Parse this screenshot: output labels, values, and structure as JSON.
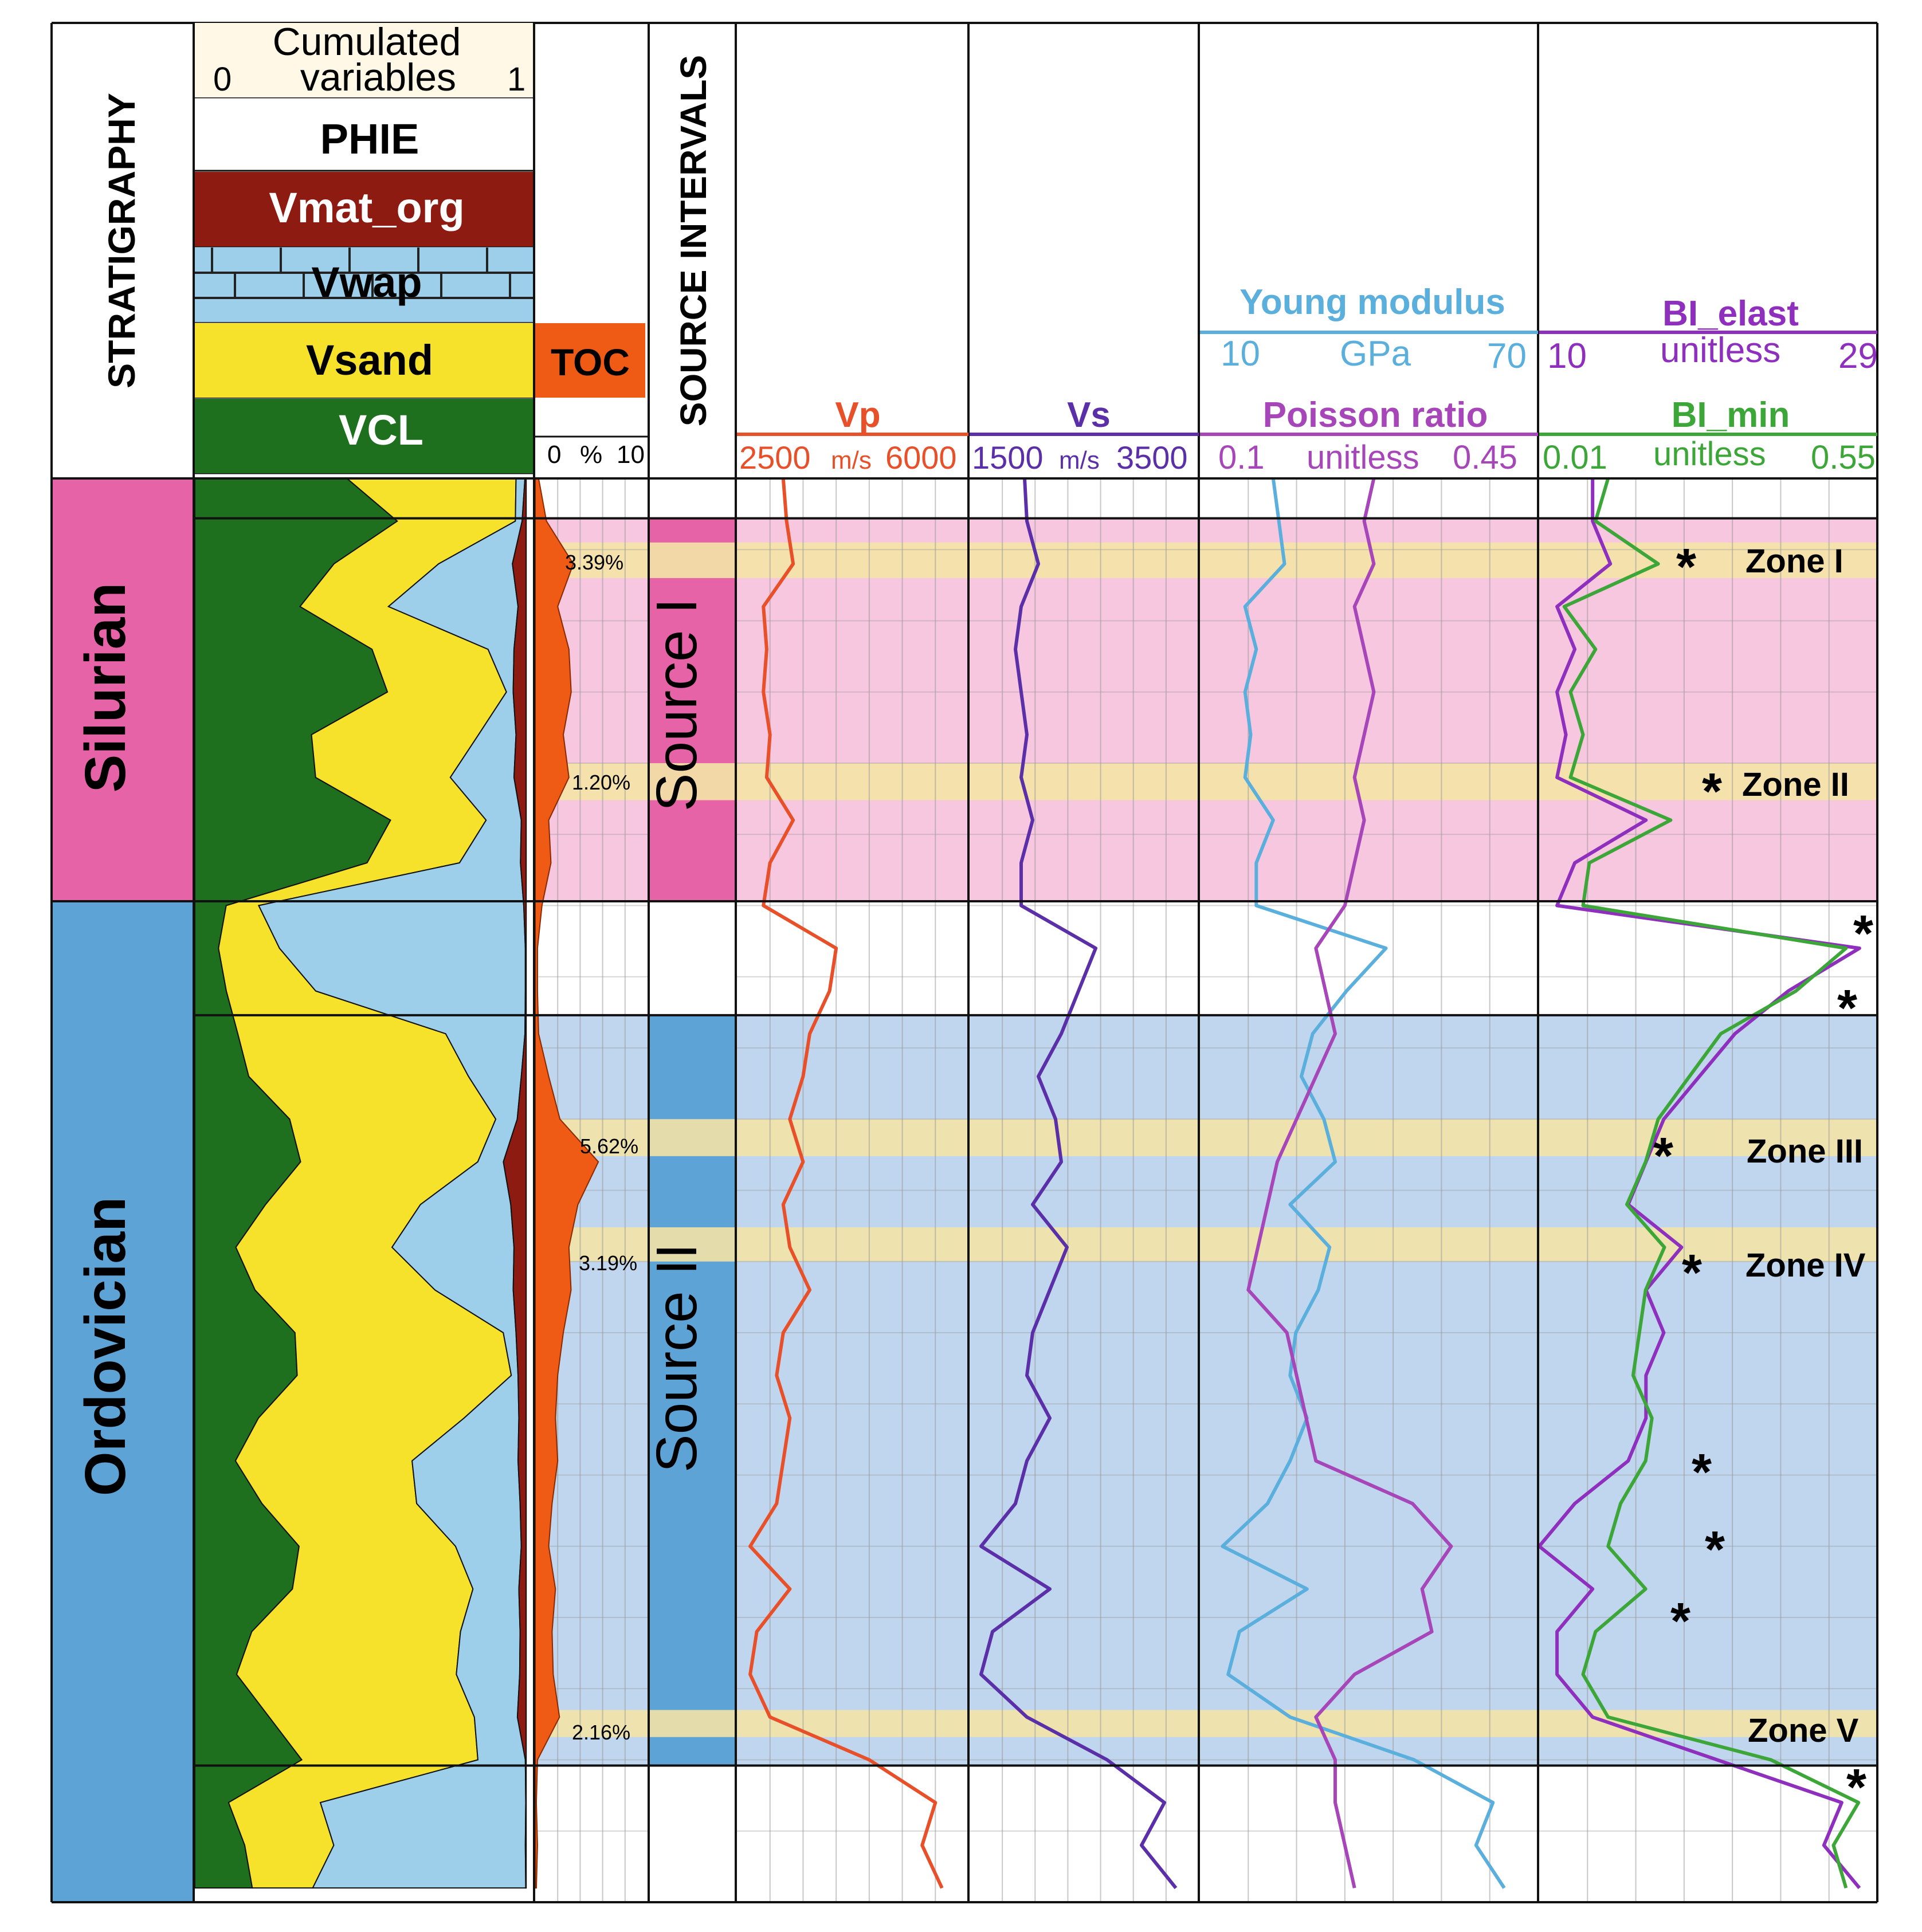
{
  "colors": {
    "silurian": "#E763A8",
    "ordovician": "#5EA3D6",
    "silurian_band": "#F7C6DF",
    "ordovician_band": "#BFD6EE",
    "zone_band": "#F3E3A6",
    "clay": "#1E6F1E",
    "sand": "#F6E22A",
    "wap": "#9DCFEA",
    "org": "#8E1B12",
    "phie": "#FFFFFF",
    "toc": "#EF5A14",
    "vp": "#E8502A",
    "vs": "#5A2FA8",
    "young": "#5AAFDC",
    "poisson": "#A646B8",
    "bi_elast": "#8E2FBE",
    "bi_min": "#3DA638"
  },
  "header": {
    "stratigraphy": "STRATIGRAPHY",
    "cumulated_line1": "Cumulated",
    "cumulated_line2": "variables",
    "cum_min": "0",
    "cum_max": "1",
    "phie": "PHIE",
    "vmat_org": "Vmat_org",
    "vwap": "Vwap",
    "vsand": "Vsand",
    "vcl": "VCL",
    "toc": "TOC",
    "toc_min": "0",
    "toc_unit": "%",
    "toc_max": "10",
    "source_intervals": "SOURCE INTERVALS",
    "vp": "Vp",
    "vp_min": "2500",
    "vp_unit": "m/s",
    "vp_max": "6000",
    "vs": "Vs",
    "vs_min": "1500",
    "vs_unit": "m/s",
    "vs_max": "3500",
    "young": "Young modulus",
    "young_min": "10",
    "young_unit": "GPa",
    "young_max": "70",
    "poisson": "Poisson ratio",
    "poisson_min": "0.1",
    "poisson_unit": "unitless",
    "poisson_max": "0.45",
    "bi_elast": "BI_elast",
    "bi_elast_min": "10",
    "bi_elast_unit": "unitless",
    "bi_elast_max": "29",
    "bi_min": "BI_min",
    "bi_min_min": "0.01",
    "bi_min_unit": "unitless",
    "bi_min_max": "0.55"
  },
  "stratigraphy": [
    "Silurian",
    "Ordovician"
  ],
  "source_intervals": [
    "Source I",
    "Source II"
  ],
  "toc_labels": [
    "3.39%",
    "1.20%",
    "5.62%",
    "3.19%",
    "2.16%"
  ],
  "zones": [
    "Zone I",
    "Zone II",
    "Zone III",
    "Zone IV",
    "Zone V"
  ],
  "asterisk": "*",
  "chart_data": {
    "type": "line",
    "depth_axis": "relative depth index, 0 (top) to 100 (bottom)",
    "tracks": [
      {
        "name": "Vp",
        "range": [
          2500,
          6000
        ],
        "unit": "m/s"
      },
      {
        "name": "Vs",
        "range": [
          1500,
          3500
        ],
        "unit": "m/s"
      },
      {
        "name": "Young modulus",
        "range": [
          10,
          70
        ],
        "unit": "GPa"
      },
      {
        "name": "Poisson ratio",
        "range": [
          0.1,
          0.45
        ],
        "unit": "unitless"
      },
      {
        "name": "BI_elast",
        "range": [
          10,
          29
        ],
        "unit": "unitless"
      },
      {
        "name": "BI_min",
        "range": [
          0.01,
          0.55
        ],
        "unit": "unitless"
      },
      {
        "name": "TOC",
        "range": [
          0,
          10
        ],
        "unit": "%"
      }
    ],
    "depth": [
      0,
      3,
      6,
      9,
      12,
      15,
      18,
      21,
      24,
      27,
      30,
      33,
      36,
      39,
      42,
      45,
      48,
      51,
      54,
      57,
      60,
      63,
      66,
      69,
      72,
      75,
      78,
      81,
      84,
      87,
      90,
      93,
      96,
      99
    ],
    "series": [
      {
        "name": "Vp",
        "values": [
          3200,
          3250,
          3350,
          2900,
          2950,
          2900,
          3000,
          2950,
          3350,
          3000,
          2900,
          4000,
          3900,
          3600,
          3500,
          3300,
          3500,
          3200,
          3300,
          3600,
          3200,
          3100,
          3300,
          3200,
          3100,
          2700,
          3300,
          2800,
          2700,
          3000,
          4500,
          5500,
          5300,
          5600
        ]
      },
      {
        "name": "Vs",
        "values": [
          1980,
          2000,
          2100,
          1950,
          1900,
          1950,
          2000,
          1950,
          2050,
          1950,
          1950,
          2600,
          2450,
          2300,
          2100,
          2250,
          2300,
          2050,
          2350,
          2200,
          2050,
          2000,
          2200,
          2000,
          1900,
          1600,
          2200,
          1700,
          1600,
          2000,
          2700,
          3200,
          3000,
          3300
        ]
      },
      {
        "name": "Young modulus",
        "values": [
          23,
          24,
          25,
          18,
          20,
          18,
          19,
          18,
          23,
          20,
          20,
          43,
          36,
          30,
          28,
          32,
          34,
          26,
          33,
          31,
          27,
          26,
          29,
          26,
          22,
          14,
          29,
          17,
          15,
          26,
          48,
          62,
          59,
          64
        ]
      },
      {
        "name": "Poisson ratio",
        "values": [
          0.28,
          0.27,
          0.28,
          0.26,
          0.27,
          0.28,
          0.27,
          0.26,
          0.27,
          0.26,
          0.25,
          0.22,
          0.23,
          0.24,
          0.22,
          0.2,
          0.18,
          0.17,
          0.16,
          0.15,
          0.19,
          0.2,
          0.21,
          0.22,
          0.32,
          0.36,
          0.33,
          0.34,
          0.26,
          0.22,
          0.24,
          0.24,
          0.25,
          0.26
        ]
      },
      {
        "name": "BI_elast",
        "values": [
          13,
          13,
          14,
          11,
          12,
          11,
          11.5,
          11,
          16,
          12,
          11,
          28,
          24,
          21,
          19,
          17,
          16,
          15,
          18,
          16,
          17,
          16,
          16,
          15,
          12,
          10,
          13,
          11,
          11,
          13,
          20,
          27,
          26,
          28
        ]
      },
      {
        "name": "BI_min",
        "values": [
          0.12,
          0.1,
          0.2,
          0.05,
          0.1,
          0.06,
          0.08,
          0.06,
          0.22,
          0.09,
          0.08,
          0.5,
          0.42,
          0.3,
          0.25,
          0.2,
          0.18,
          0.15,
          0.21,
          0.18,
          0.17,
          0.16,
          0.19,
          0.18,
          0.14,
          0.12,
          0.18,
          0.1,
          0.08,
          0.12,
          0.38,
          0.52,
          0.48,
          0.5
        ]
      },
      {
        "name": "TOC",
        "values": [
          0.3,
          1.0,
          3.39,
          2.0,
          3.0,
          3.2,
          2.5,
          3.0,
          1.2,
          1.4,
          0.6,
          0.2,
          0.2,
          0.3,
          1.2,
          2.2,
          5.62,
          3.8,
          3.0,
          3.19,
          2.5,
          2.0,
          1.8,
          2.0,
          1.5,
          1.2,
          1.8,
          1.5,
          1.6,
          2.16,
          0.2,
          0.1,
          0.2,
          0.1
        ]
      }
    ],
    "intervals": [
      {
        "name": "Silurian",
        "from": 0,
        "to": 29.7
      },
      {
        "name": "Ordovician",
        "from": 29.7,
        "to": 100
      },
      {
        "name": "Source I",
        "from": 2.8,
        "to": 29.7
      },
      {
        "name": "Source II",
        "from": 37.7,
        "to": 90.4
      }
    ],
    "zone_depths": [
      {
        "name": "Zone I",
        "from": 4.5,
        "to": 7.0
      },
      {
        "name": "Zone II",
        "from": 20.0,
        "to": 22.6
      },
      {
        "name": "Zone III",
        "from": 45.0,
        "to": 47.6
      },
      {
        "name": "Zone IV",
        "from": 52.6,
        "to": 55.0
      },
      {
        "name": "Zone V",
        "from": 86.5,
        "to": 88.4
      }
    ]
  }
}
